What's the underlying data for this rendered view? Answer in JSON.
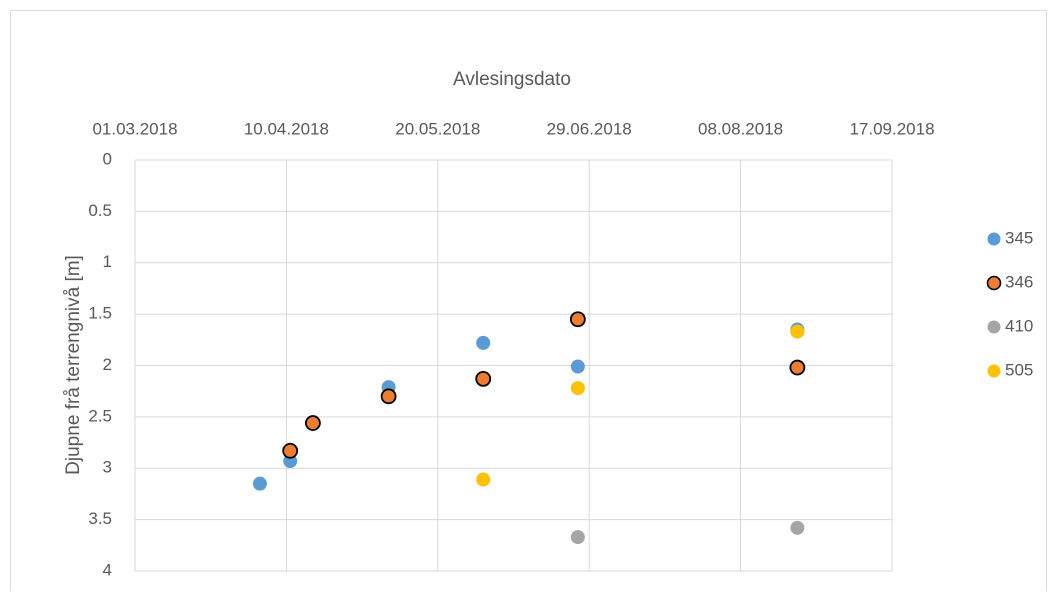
{
  "chart_data": {
    "type": "scatter",
    "title": "Avlesingsdato",
    "ylabel": "Djupne frå terrengnivå [m]",
    "x_axis_position": "top",
    "y_inverted": true,
    "grid": true,
    "legend": "right",
    "xlim": [
      "2018-03-01",
      "2018-09-17"
    ],
    "xticks": [
      {
        "value": "2018-03-01",
        "label": "01.03.2018"
      },
      {
        "value": "2018-04-10",
        "label": "10.04.2018"
      },
      {
        "value": "2018-05-20",
        "label": "20.05.2018"
      },
      {
        "value": "2018-06-29",
        "label": "29.06.2018"
      },
      {
        "value": "2018-08-08",
        "label": "08.08.2018"
      },
      {
        "value": "2018-09-17",
        "label": "17.09.2018"
      }
    ],
    "ylim": [
      0,
      4
    ],
    "yticks": [
      0,
      0.5,
      1,
      1.5,
      2,
      2.5,
      3,
      3.5,
      4
    ],
    "series": [
      {
        "name": "345",
        "color": "#5b9bd5",
        "x": [
          "2018-04-03",
          "2018-04-11",
          "2018-05-07",
          "2018-06-01",
          "2018-06-26",
          "2018-08-23"
        ],
        "values": [
          3.15,
          2.93,
          2.21,
          1.78,
          2.01,
          1.65
        ]
      },
      {
        "name": "346",
        "color": "#ed7d31",
        "edgecolor": "#000000",
        "x": [
          "2018-04-11",
          "2018-04-17",
          "2018-05-07",
          "2018-06-01",
          "2018-06-26",
          "2018-08-23"
        ],
        "values": [
          2.83,
          2.56,
          2.3,
          2.13,
          1.55,
          2.02
        ]
      },
      {
        "name": "410",
        "color": "#a5a5a5",
        "x": [
          "2018-06-26",
          "2018-08-23"
        ],
        "values": [
          3.67,
          3.58
        ]
      },
      {
        "name": "505",
        "color": "#ffc000",
        "x": [
          "2018-06-01",
          "2018-06-26",
          "2018-08-23"
        ],
        "values": [
          3.11,
          2.22,
          1.67
        ]
      }
    ]
  }
}
